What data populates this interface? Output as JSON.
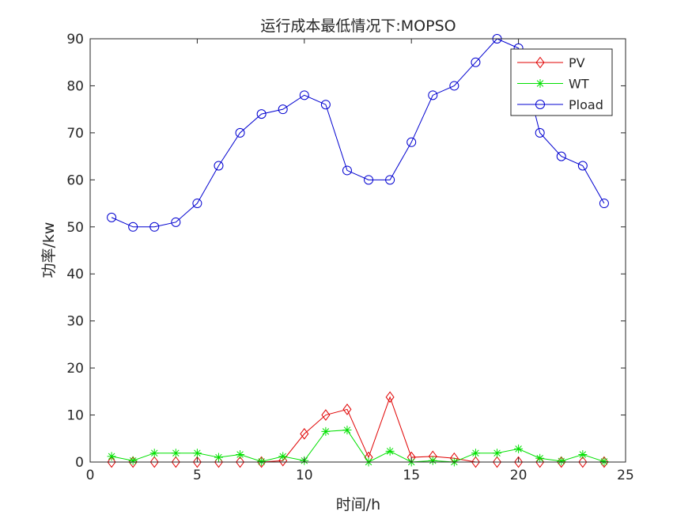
{
  "chart_data": {
    "type": "line",
    "title": "运行成本最低情况下:MOPSO",
    "xlabel": "时间/h",
    "ylabel": "功率/kw",
    "xlim": [
      0,
      25
    ],
    "ylim": [
      0,
      90
    ],
    "xticks": [
      0,
      5,
      10,
      15,
      20,
      25
    ],
    "yticks": [
      0,
      10,
      20,
      30,
      40,
      50,
      60,
      70,
      80,
      90
    ],
    "grid": false,
    "legend_position": "top-right",
    "x": [
      1,
      2,
      3,
      4,
      5,
      6,
      7,
      8,
      9,
      10,
      11,
      12,
      13,
      14,
      15,
      16,
      17,
      18,
      19,
      20,
      21,
      22,
      23,
      24
    ],
    "series": [
      {
        "name": "PV",
        "color": "#e00000",
        "marker": "diamond",
        "values": [
          0,
          0,
          0,
          0,
          0,
          0,
          0,
          0,
          0.3,
          6,
          10,
          11.2,
          1,
          13.8,
          1,
          1.2,
          0.8,
          0,
          0,
          0,
          0,
          0,
          0,
          0
        ]
      },
      {
        "name": "WT",
        "color": "#00e000",
        "marker": "asterisk",
        "values": [
          1.2,
          0.3,
          1.9,
          1.9,
          1.9,
          1,
          1.6,
          0.1,
          1.2,
          0.3,
          6.5,
          6.8,
          0,
          2.3,
          0,
          0.3,
          0,
          1.9,
          1.9,
          2.8,
          0.8,
          0.2,
          1.6,
          0.1
        ]
      },
      {
        "name": "Pload",
        "color": "#0000d0",
        "marker": "circle",
        "values": [
          52,
          50,
          50,
          51,
          55,
          63,
          70,
          74,
          75,
          78,
          76,
          62,
          60,
          60,
          68,
          78,
          80,
          85,
          90,
          88,
          70,
          65,
          63,
          55
        ]
      }
    ]
  }
}
